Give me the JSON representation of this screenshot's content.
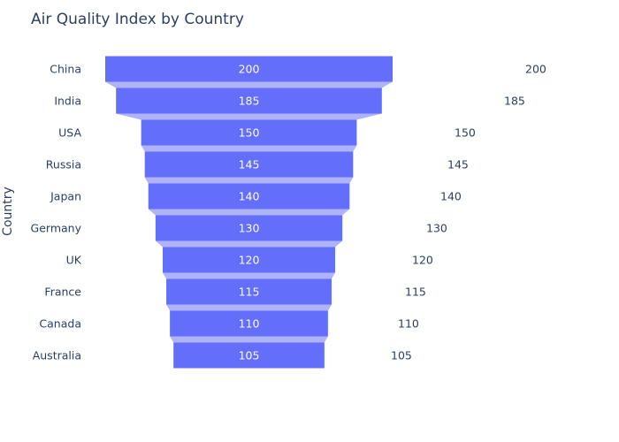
{
  "chart_data": {
    "type": "funnel",
    "title": "Air Quality Index by Country",
    "ylabel": "Country",
    "xlabel": "",
    "categories": [
      "China",
      "India",
      "USA",
      "Russia",
      "Japan",
      "Germany",
      "UK",
      "France",
      "Canada",
      "Australia"
    ],
    "values": [
      200,
      185,
      150,
      145,
      140,
      130,
      120,
      115,
      110,
      105
    ],
    "colors": {
      "bar": "#636efa",
      "connector": "#aeb3fc",
      "text_dark": "#2a3f5f",
      "text_light": "#ffffff"
    }
  }
}
